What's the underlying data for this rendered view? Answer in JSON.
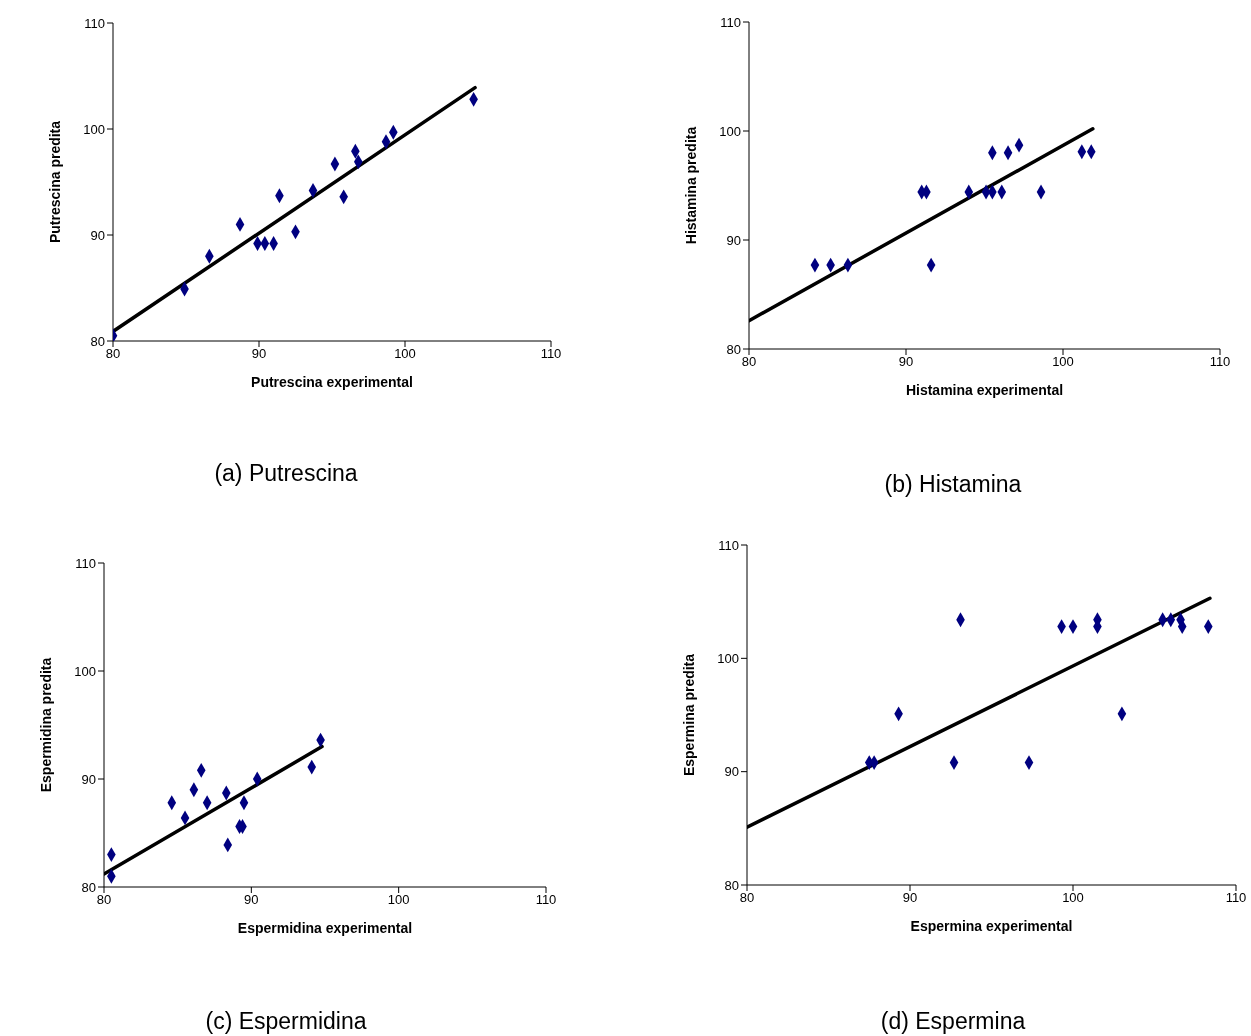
{
  "chart_data": [
    {
      "type": "scatter",
      "xlabel": "Putrescina experimental",
      "ylabel": "Putrescina predita",
      "annotations": [
        "(a) Putrescina"
      ],
      "xlim": [
        80,
        110
      ],
      "xticks": [
        80,
        90,
        100,
        110
      ],
      "ylim": [
        80,
        110
      ],
      "yticks": [
        80,
        90,
        100,
        110
      ],
      "grid": false,
      "series": [
        {
          "marker": "diamond",
          "color": "#000080",
          "x": [
            80,
            84.9,
            86.6,
            88.7,
            89.9,
            90.4,
            91.0,
            91.4,
            92.5,
            93.7,
            95.2,
            95.8,
            96.6,
            96.8,
            98.7,
            99.2,
            104.7
          ],
          "values": [
            80.5,
            84.9,
            88.0,
            91.0,
            89.2,
            89.2,
            89.2,
            93.7,
            90.3,
            94.2,
            96.7,
            93.6,
            97.9,
            96.9,
            98.8,
            99.7,
            102.8
          ]
        },
        {
          "type": "line",
          "marker": "none",
          "color": "#000000",
          "x": [
            80,
            104.8
          ],
          "values": [
            80.9,
            103.9
          ]
        }
      ]
    },
    {
      "type": "scatter",
      "xlabel": "Histamina experimental",
      "ylabel": "Histamina predita",
      "annotations": [
        "(b) Histamina"
      ],
      "xlim": [
        80,
        110
      ],
      "xticks": [
        80,
        90,
        100,
        110
      ],
      "ylim": [
        80,
        110
      ],
      "yticks": [
        80,
        90,
        100,
        110
      ],
      "grid": false,
      "series": [
        {
          "marker": "diamond",
          "color": "#000080",
          "x": [
            84.2,
            85.2,
            86.3,
            91.6,
            91.0,
            91.3,
            94.0,
            95.1,
            95.5,
            96.1,
            98.6,
            95.5,
            96.5,
            97.2,
            101.2,
            101.8
          ],
          "values": [
            87.7,
            87.7,
            87.7,
            87.7,
            94.4,
            94.4,
            94.4,
            94.4,
            94.4,
            94.4,
            94.4,
            98.0,
            98.0,
            98.7,
            98.1,
            98.1
          ]
        },
        {
          "type": "line",
          "marker": "none",
          "color": "#000000",
          "x": [
            80,
            101.9
          ],
          "values": [
            82.6,
            100.2
          ]
        }
      ]
    },
    {
      "type": "scatter",
      "xlabel": "Espermidina experimental",
      "ylabel": "Espermidina predita",
      "annotations": [
        "(c) Espermidina"
      ],
      "xlim": [
        80,
        110
      ],
      "xticks": [
        80,
        90,
        100,
        110
      ],
      "ylim": [
        80,
        110
      ],
      "yticks": [
        80,
        90,
        100,
        110
      ],
      "grid": false,
      "series": [
        {
          "marker": "diamond",
          "color": "#000080",
          "x": [
            80.5,
            80.5,
            84.6,
            85.5,
            86.1,
            86.6,
            87.0,
            88.4,
            88.3,
            89.2,
            89.4,
            89.5,
            90.4,
            94.1,
            94.7
          ],
          "values": [
            81.0,
            83.0,
            87.8,
            86.4,
            89.0,
            90.8,
            87.8,
            83.9,
            88.7,
            85.6,
            85.6,
            87.8,
            90.0,
            91.1,
            93.6
          ]
        },
        {
          "type": "line",
          "marker": "none",
          "color": "#000000",
          "x": [
            80,
            94.8
          ],
          "values": [
            81.2,
            93.0
          ]
        }
      ]
    },
    {
      "type": "scatter",
      "xlabel": "Espermina experimental",
      "ylabel": "Espermina  predita",
      "annotations": [
        "(d) Espermina"
      ],
      "xlim": [
        80,
        110
      ],
      "xticks": [
        80,
        90,
        100,
        110
      ],
      "ylim": [
        80,
        110
      ],
      "yticks": [
        80,
        90,
        100,
        110
      ],
      "grid": false,
      "series": [
        {
          "marker": "diamond",
          "color": "#000080",
          "x": [
            87.5,
            87.8,
            89.3,
            92.7,
            93.1,
            97.3,
            99.3,
            100.0,
            101.5,
            101.5,
            103.0,
            105.5,
            106.0,
            106.6,
            106.7,
            108.3
          ],
          "values": [
            90.8,
            90.8,
            95.1,
            90.8,
            103.4,
            90.8,
            102.8,
            102.8,
            102.8,
            103.4,
            95.1,
            103.4,
            103.4,
            103.4,
            102.8,
            102.8
          ]
        },
        {
          "type": "line",
          "marker": "none",
          "color": "#000000",
          "x": [
            80,
            108.4
          ],
          "values": [
            85.1,
            105.3
          ]
        }
      ]
    }
  ]
}
